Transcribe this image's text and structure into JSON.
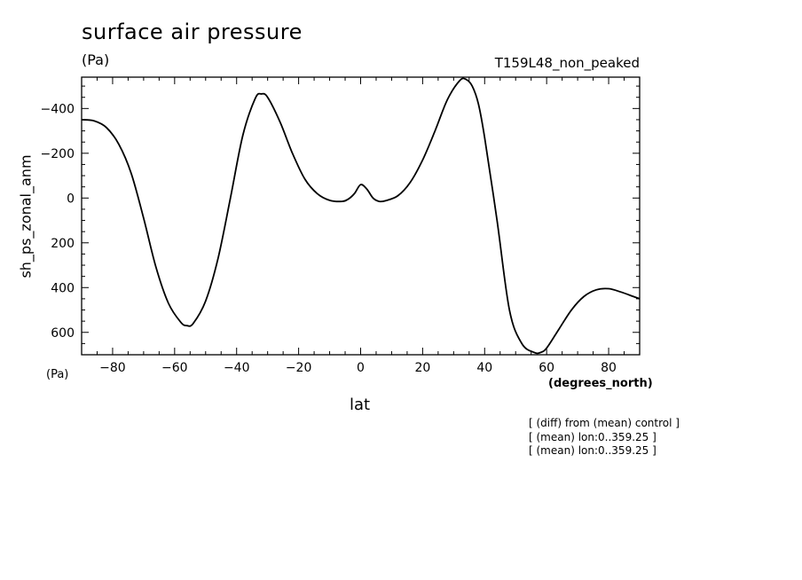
{
  "chart_data": {
    "type": "line",
    "title": "surface air pressure",
    "units_label": "(Pa)",
    "run_label": "T159L48_non_peaked",
    "xlabel": "lat",
    "xunit": "(degrees_north)",
    "ylabel": "sh_ps_zonal_anm",
    "yunit": "(Pa)",
    "xlim": [
      -90,
      90
    ],
    "ylim": [
      -540,
      700
    ],
    "y_inverted": true,
    "xticks": [
      -80,
      -60,
      -40,
      -20,
      0,
      20,
      40,
      60,
      80
    ],
    "yticks": [
      -400,
      -200,
      0,
      200,
      400,
      600
    ],
    "grid": false,
    "series": [
      {
        "x": [
          -90,
          -86,
          -82,
          -78,
          -74,
          -70,
          -66,
          -62,
          -58,
          -56,
          -54,
          -50,
          -46,
          -42,
          -38,
          -34,
          -32,
          -30,
          -26,
          -22,
          -18,
          -14,
          -10,
          -6,
          -4,
          -2,
          0,
          2,
          4,
          6,
          8,
          12,
          16,
          20,
          24,
          28,
          32,
          34,
          36,
          38,
          40,
          44,
          48,
          52,
          56,
          58,
          60,
          64,
          68,
          72,
          76,
          80,
          84,
          88,
          90
        ],
        "y": [
          -350,
          -345,
          -315,
          -240,
          -110,
          90,
          310,
          470,
          555,
          570,
          560,
          460,
          270,
          0,
          -280,
          -445,
          -465,
          -450,
          -340,
          -200,
          -85,
          -20,
          10,
          15,
          5,
          -20,
          -60,
          -40,
          0,
          15,
          12,
          -10,
          -70,
          -170,
          -300,
          -440,
          -525,
          -530,
          -500,
          -420,
          -270,
          100,
          500,
          650,
          690,
          690,
          670,
          585,
          500,
          440,
          410,
          405,
          420,
          440,
          450
        ]
      }
    ],
    "notes": [
      "[ (diff) from (mean) control ]",
      "[ (mean) lon:0..359.25 ]",
      "[ (mean) lon:0..359.25 ]"
    ]
  }
}
